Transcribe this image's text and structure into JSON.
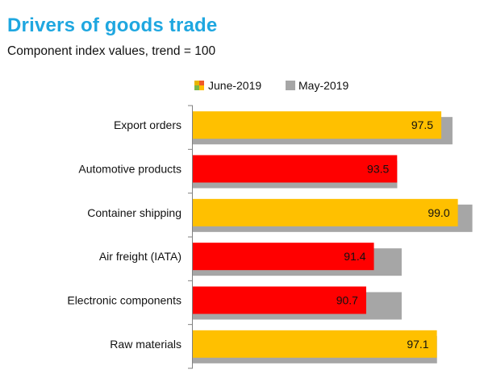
{
  "chart_data": {
    "type": "bar",
    "orientation": "horizontal",
    "title": "Drivers of goods trade",
    "subtitle": "Component index values, trend = 100",
    "categories": [
      "Export orders",
      "Automotive products",
      "Container shipping",
      "Air freight (IATA)",
      "Electronic components",
      "Raw materials"
    ],
    "series": [
      {
        "name": "June-2019",
        "values": [
          97.5,
          93.5,
          99.0,
          91.4,
          90.7,
          97.1
        ],
        "labels": [
          "97.5",
          "93.5",
          "99.0",
          "91.4",
          "90.7",
          "97.1"
        ]
      },
      {
        "name": "May-2019",
        "values": [
          98.0,
          93.0,
          99.8,
          93.4,
          93.4,
          96.6
        ]
      }
    ],
    "xlim": [
      75,
      101
    ],
    "legend_position": "top",
    "colors": {
      "above_trend_bar": "#ffc000",
      "below_trend_bar": "#ff0000",
      "previous_month_bar": "#a6a6a6",
      "title": "#1fa7e0"
    }
  }
}
